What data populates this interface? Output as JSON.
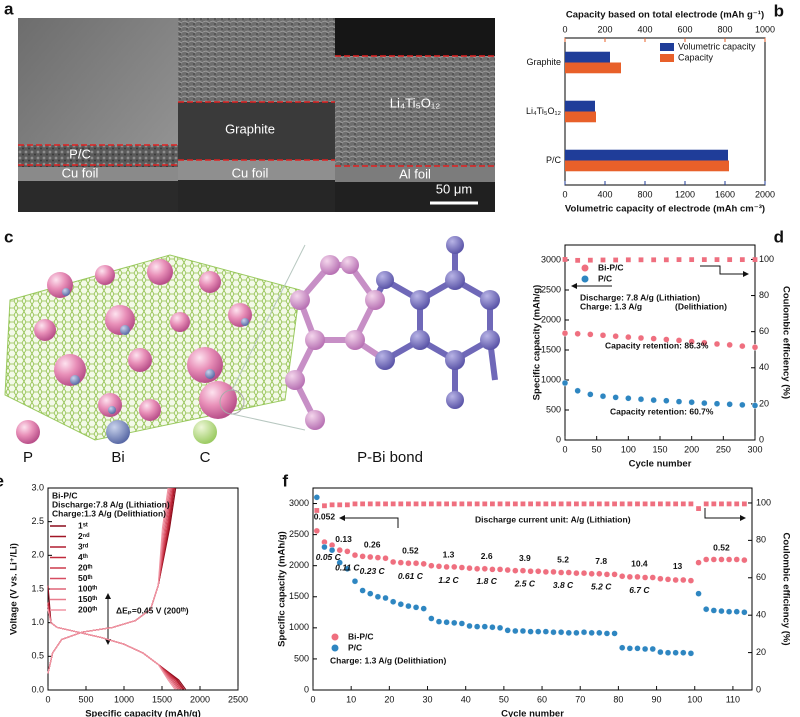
{
  "panel_a": {
    "label": "a",
    "layers": [
      "P/C",
      "Cu foil",
      "Graphite",
      "Cu foil",
      "Li₄Ti₅O₁₂",
      "Al foil"
    ],
    "scale_bar": "50 μm"
  },
  "panel_c": {
    "label": "c",
    "legend": [
      "P",
      "Bi",
      "C"
    ],
    "caption": "P-Bi bond"
  },
  "chart_data": [
    {
      "type": "bar",
      "panel": "b",
      "horizontal": true,
      "categories": [
        "Graphite",
        "Li₄Ti₅O₁₂",
        "P/C"
      ],
      "series": [
        {
          "name": "Volumetric capacity",
          "color": "#1f3d99",
          "values": [
            450,
            300,
            1630
          ]
        },
        {
          "name": "Capacity",
          "color": "#e8602a",
          "values": [
            280,
            155,
            820
          ],
          "axis": "x2"
        }
      ],
      "xlim": [
        0,
        2000
      ],
      "xticks": [
        0,
        400,
        800,
        1200,
        1600,
        2000
      ],
      "x2lim": [
        0,
        1000
      ],
      "x2ticks": [
        0,
        200,
        400,
        600,
        800,
        1000
      ],
      "xlabel": "Volumetric capacity of electrode (mAh cm⁻³)",
      "x2label": "Capacity based on total electrode (mAh g⁻¹)",
      "legend": "upper right"
    },
    {
      "type": "scatter",
      "panel": "d",
      "x": [
        0,
        20,
        40,
        60,
        80,
        100,
        120,
        140,
        160,
        180,
        200,
        220,
        240,
        260,
        280,
        300
      ],
      "series": [
        {
          "name": "Bi-P/C",
          "color": "#ef6f7f",
          "marker": "circle",
          "values": [
            1780,
            1770,
            1760,
            1745,
            1730,
            1715,
            1700,
            1690,
            1675,
            1660,
            1640,
            1620,
            1600,
            1585,
            1565,
            1545
          ]
        },
        {
          "name": "P/C",
          "color": "#2e86c1",
          "marker": "circle",
          "values": [
            950,
            820,
            760,
            730,
            710,
            695,
            680,
            665,
            655,
            640,
            630,
            615,
            605,
            595,
            585,
            575
          ]
        },
        {
          "color": "#ef6f7f",
          "marker": "square",
          "axis": "y2",
          "values": [
            100,
            99.5,
            99.6,
            99.7,
            99.7,
            99.8,
            99.8,
            99.8,
            99.8,
            99.9,
            99.9,
            99.9,
            99.9,
            99.9,
            99.9,
            99.9
          ]
        }
      ],
      "xlim": [
        0,
        300
      ],
      "xticks": [
        0,
        50,
        100,
        150,
        200,
        250,
        300
      ],
      "ylim": [
        0,
        3250
      ],
      "yticks": [
        0,
        500,
        1000,
        1500,
        2000,
        2500,
        3000
      ],
      "y2lim": [
        0,
        108
      ],
      "y2ticks": [
        0,
        20,
        40,
        60,
        80,
        100
      ],
      "xlabel": "Cycle number",
      "ylabel": "Specific capacity (mAh/g)",
      "y2label": "Coulombic efficiency (%)",
      "annotations": [
        "Discharge: 7.8 A/g (Lithiation)",
        "Charge: 1.3 A/g",
        "(Delithiation)",
        "Capacity retention: 86.3%",
        "Capacity retention: 60.7%"
      ],
      "legend": "upper left"
    },
    {
      "type": "line",
      "panel": "e",
      "series": [
        {
          "name": "1ˢᵗ",
          "color": "#8b0a1a",
          "x": [
            0,
            40,
            120,
            350,
            700,
            1000,
            1250,
            1450,
            1720,
            1810,
            null,
            0,
            60,
            180,
            450,
            850,
            1150,
            1350,
            1450,
            1600,
            1680
          ],
          "values": [
            1.55,
            1.0,
            0.93,
            0.87,
            0.78,
            0.68,
            0.55,
            0.38,
            0.15,
            0.01,
            null,
            0.25,
            0.55,
            0.75,
            0.86,
            0.93,
            1.03,
            1.2,
            1.55,
            2.4,
            3.0
          ]
        },
        {
          "name": "2ⁿᵈ",
          "color": "#a01525",
          "x": [
            0,
            40,
            120,
            350,
            700,
            1000,
            1250,
            1450,
            1700,
            1790,
            null,
            0,
            60,
            180,
            450,
            850,
            1150,
            1350,
            1450,
            1590,
            1665
          ],
          "values": [
            1.3,
            1.0,
            0.93,
            0.87,
            0.78,
            0.68,
            0.55,
            0.38,
            0.15,
            0.01,
            null,
            0.25,
            0.55,
            0.75,
            0.86,
            0.93,
            1.03,
            1.2,
            1.55,
            2.4,
            3.0
          ]
        },
        {
          "name": "3ʳᵈ",
          "color": "#b01e30",
          "x": [
            0,
            40,
            120,
            350,
            700,
            1000,
            1250,
            1450,
            1690,
            1780,
            null,
            0,
            60,
            180,
            450,
            850,
            1150,
            1350,
            1450,
            1580,
            1655
          ],
          "values": [
            1.3,
            1.0,
            0.93,
            0.87,
            0.78,
            0.68,
            0.55,
            0.38,
            0.15,
            0.01,
            null,
            0.25,
            0.55,
            0.75,
            0.86,
            0.93,
            1.03,
            1.2,
            1.55,
            2.4,
            3.0
          ]
        },
        {
          "name": "4ᵗʰ",
          "color": "#c02a3c",
          "x": [
            0,
            40,
            120,
            350,
            700,
            1000,
            1250,
            1450,
            1680,
            1770,
            null,
            0,
            60,
            180,
            450,
            850,
            1150,
            1350,
            1450,
            1575,
            1650
          ],
          "values": [
            1.3,
            1.0,
            0.93,
            0.87,
            0.78,
            0.68,
            0.55,
            0.38,
            0.15,
            0.01,
            null,
            0.25,
            0.55,
            0.75,
            0.86,
            0.93,
            1.03,
            1.2,
            1.55,
            2.4,
            3.0
          ]
        },
        {
          "name": "20ᵗʰ",
          "color": "#cc3a4c",
          "x": [
            0,
            40,
            120,
            350,
            700,
            1000,
            1250,
            1450,
            1660,
            1750,
            null,
            0,
            60,
            180,
            450,
            850,
            1150,
            1350,
            1450,
            1565,
            1640
          ],
          "values": [
            1.25,
            1.0,
            0.93,
            0.87,
            0.78,
            0.68,
            0.55,
            0.38,
            0.15,
            0.01,
            null,
            0.25,
            0.55,
            0.75,
            0.86,
            0.93,
            1.03,
            1.2,
            1.55,
            2.4,
            3.0
          ]
        },
        {
          "name": "50ᵗʰ",
          "color": "#d64d60",
          "x": [
            0,
            40,
            120,
            350,
            700,
            1000,
            1250,
            1450,
            1640,
            1730,
            null,
            0,
            60,
            180,
            450,
            850,
            1150,
            1350,
            1450,
            1550,
            1625
          ],
          "values": [
            1.25,
            1.0,
            0.93,
            0.87,
            0.78,
            0.68,
            0.55,
            0.38,
            0.15,
            0.01,
            null,
            0.25,
            0.55,
            0.75,
            0.86,
            0.93,
            1.03,
            1.2,
            1.55,
            2.4,
            3.0
          ]
        },
        {
          "name": "100ᵗʰ",
          "color": "#df6477",
          "x": [
            0,
            40,
            120,
            350,
            700,
            1000,
            1250,
            1450,
            1620,
            1710,
            null,
            0,
            60,
            180,
            450,
            850,
            1150,
            1350,
            1450,
            1535,
            1610
          ],
          "values": [
            1.2,
            1.0,
            0.93,
            0.87,
            0.78,
            0.68,
            0.55,
            0.38,
            0.15,
            0.01,
            null,
            0.25,
            0.55,
            0.75,
            0.86,
            0.93,
            1.03,
            1.2,
            1.55,
            2.4,
            3.0
          ]
        },
        {
          "name": "150ᵗʰ",
          "color": "#e87c8d",
          "x": [
            0,
            40,
            120,
            350,
            700,
            1000,
            1250,
            1450,
            1600,
            1690,
            null,
            0,
            60,
            180,
            450,
            850,
            1150,
            1350,
            1450,
            1520,
            1595
          ],
          "values": [
            1.2,
            1.0,
            0.93,
            0.87,
            0.78,
            0.68,
            0.55,
            0.38,
            0.15,
            0.01,
            null,
            0.25,
            0.55,
            0.75,
            0.86,
            0.93,
            1.03,
            1.2,
            1.55,
            2.4,
            3.0
          ]
        },
        {
          "name": "200ᵗʰ",
          "color": "#f096a4",
          "x": [
            0,
            40,
            120,
            350,
            700,
            1000,
            1250,
            1450,
            1580,
            1670,
            null,
            0,
            60,
            180,
            450,
            850,
            1150,
            1350,
            1450,
            1505,
            1580
          ],
          "values": [
            1.2,
            1.0,
            0.93,
            0.87,
            0.78,
            0.68,
            0.55,
            0.38,
            0.15,
            0.01,
            null,
            0.25,
            0.55,
            0.75,
            0.86,
            0.93,
            1.03,
            1.2,
            1.55,
            2.4,
            3.0
          ]
        }
      ],
      "xlim": [
        0,
        2500
      ],
      "xticks": [
        0,
        500,
        1000,
        1500,
        2000,
        2500
      ],
      "ylim": [
        0,
        3
      ],
      "yticks": [
        {
          "value": 0,
          "label": "0.0"
        },
        0.5,
        {
          "value": 1,
          "label": "1.0"
        },
        1.5,
        {
          "value": 2,
          "label": "2.0"
        },
        2.5,
        {
          "value": 3,
          "label": "3.0"
        }
      ],
      "xlabel": "Specific capacity (mAh/g)",
      "ylabel": "Voltage (V vs. Li⁺/Li)",
      "annotations": [
        "Bi-P/C",
        "Discharge:7.8 A/g (Lithiation)",
        "Charge:1.3 A/g    (Delithiation)",
        "ΔEₚ=0.45 V (200ᵗʰ)"
      ],
      "legend": "upper left"
    },
    {
      "type": "scatter",
      "panel": "f",
      "x": [
        1,
        3,
        5,
        7,
        9,
        11,
        13,
        15,
        17,
        19,
        21,
        23,
        25,
        27,
        29,
        31,
        33,
        35,
        37,
        39,
        41,
        43,
        45,
        47,
        49,
        51,
        53,
        55,
        57,
        59,
        61,
        63,
        65,
        67,
        69,
        71,
        73,
        75,
        77,
        79,
        81,
        83,
        85,
        87,
        89,
        91,
        93,
        95,
        97,
        99,
        101,
        103,
        105,
        107,
        109,
        111,
        113
      ],
      "series": [
        {
          "name": "Bi-P/C",
          "color": "#ef6f7f",
          "marker": "circle",
          "values": [
            2560,
            2380,
            2330,
            2250,
            2230,
            2170,
            2150,
            2140,
            2130,
            2120,
            2060,
            2050,
            2040,
            2040,
            2030,
            2000,
            1990,
            1980,
            1980,
            1970,
            1960,
            1950,
            1950,
            1940,
            1940,
            1930,
            1920,
            1920,
            1910,
            1910,
            1900,
            1900,
            1890,
            1890,
            1880,
            1880,
            1870,
            1870,
            1860,
            1860,
            1830,
            1820,
            1820,
            1810,
            1810,
            1790,
            1780,
            1770,
            1770,
            1760,
            2050,
            2100,
            2100,
            2100,
            2100,
            2100,
            2090
          ]
        },
        {
          "name": "P/C",
          "color": "#2e86c1",
          "marker": "circle",
          "values": [
            3100,
            2300,
            2250,
            2050,
            1950,
            1750,
            1600,
            1550,
            1500,
            1480,
            1420,
            1380,
            1350,
            1330,
            1310,
            1150,
            1100,
            1090,
            1080,
            1070,
            1030,
            1020,
            1020,
            1010,
            1000,
            960,
            950,
            950,
            940,
            940,
            940,
            930,
            930,
            920,
            920,
            930,
            920,
            920,
            910,
            910,
            680,
            670,
            670,
            660,
            660,
            610,
            600,
            600,
            600,
            590,
            1550,
            1300,
            1280,
            1270,
            1260,
            1260,
            1250
          ]
        },
        {
          "color": "#ef6f7f",
          "marker": "square",
          "axis": "y2",
          "values": [
            96,
            98.5,
            99,
            99,
            99,
            99.5,
            99.5,
            99.5,
            99.5,
            99.5,
            99.5,
            99.5,
            99.5,
            99.5,
            99.5,
            99.5,
            99.5,
            99.5,
            99.5,
            99.5,
            99.5,
            99.5,
            99.5,
            99.5,
            99.5,
            99.5,
            99.5,
            99.5,
            99.5,
            99.5,
            99.5,
            99.5,
            99.5,
            99.5,
            99.5,
            99.5,
            99.5,
            99.5,
            99.5,
            99.5,
            99.5,
            99.5,
            99.5,
            99.5,
            99.5,
            99.5,
            99.5,
            99.5,
            99.5,
            99.5,
            97,
            99.5,
            99.5,
            99.5,
            99.5,
            99.5,
            99.5
          ]
        }
      ],
      "xlim": [
        0,
        115
      ],
      "xticks": [
        0,
        10,
        20,
        30,
        40,
        50,
        60,
        70,
        80,
        90,
        100,
        110
      ],
      "ylim": [
        0,
        3250
      ],
      "yticks": [
        0,
        500,
        1000,
        1500,
        2000,
        2500,
        3000
      ],
      "y2lim": [
        0,
        108
      ],
      "y2ticks": [
        0,
        20,
        40,
        60,
        80,
        100
      ],
      "xlabel": "Cycle number",
      "ylabel": "Specific capacity (mAh/g)",
      "y2label": "Coulombic efficiency (%)",
      "annotations": [
        "Discharge current  unit: A/g (Lithiation)",
        "Charge: 1.3 A/g (Delithiation)"
      ],
      "rate_labels": [
        "0.052",
        "0.13",
        "0.26",
        "0.52",
        "1.3",
        "2.6",
        "3.9",
        "5.2",
        "7.8",
        "10.4",
        "13",
        "0.52"
      ],
      "c_rate_labels": [
        "0.05 C",
        "0.11 C",
        "0.23 C",
        "0.61 C",
        "1.2 C",
        "1.8 C",
        "2.5 C",
        "3.8 C",
        "5.2 C",
        "6.7 C"
      ],
      "legend": "lower left"
    }
  ]
}
